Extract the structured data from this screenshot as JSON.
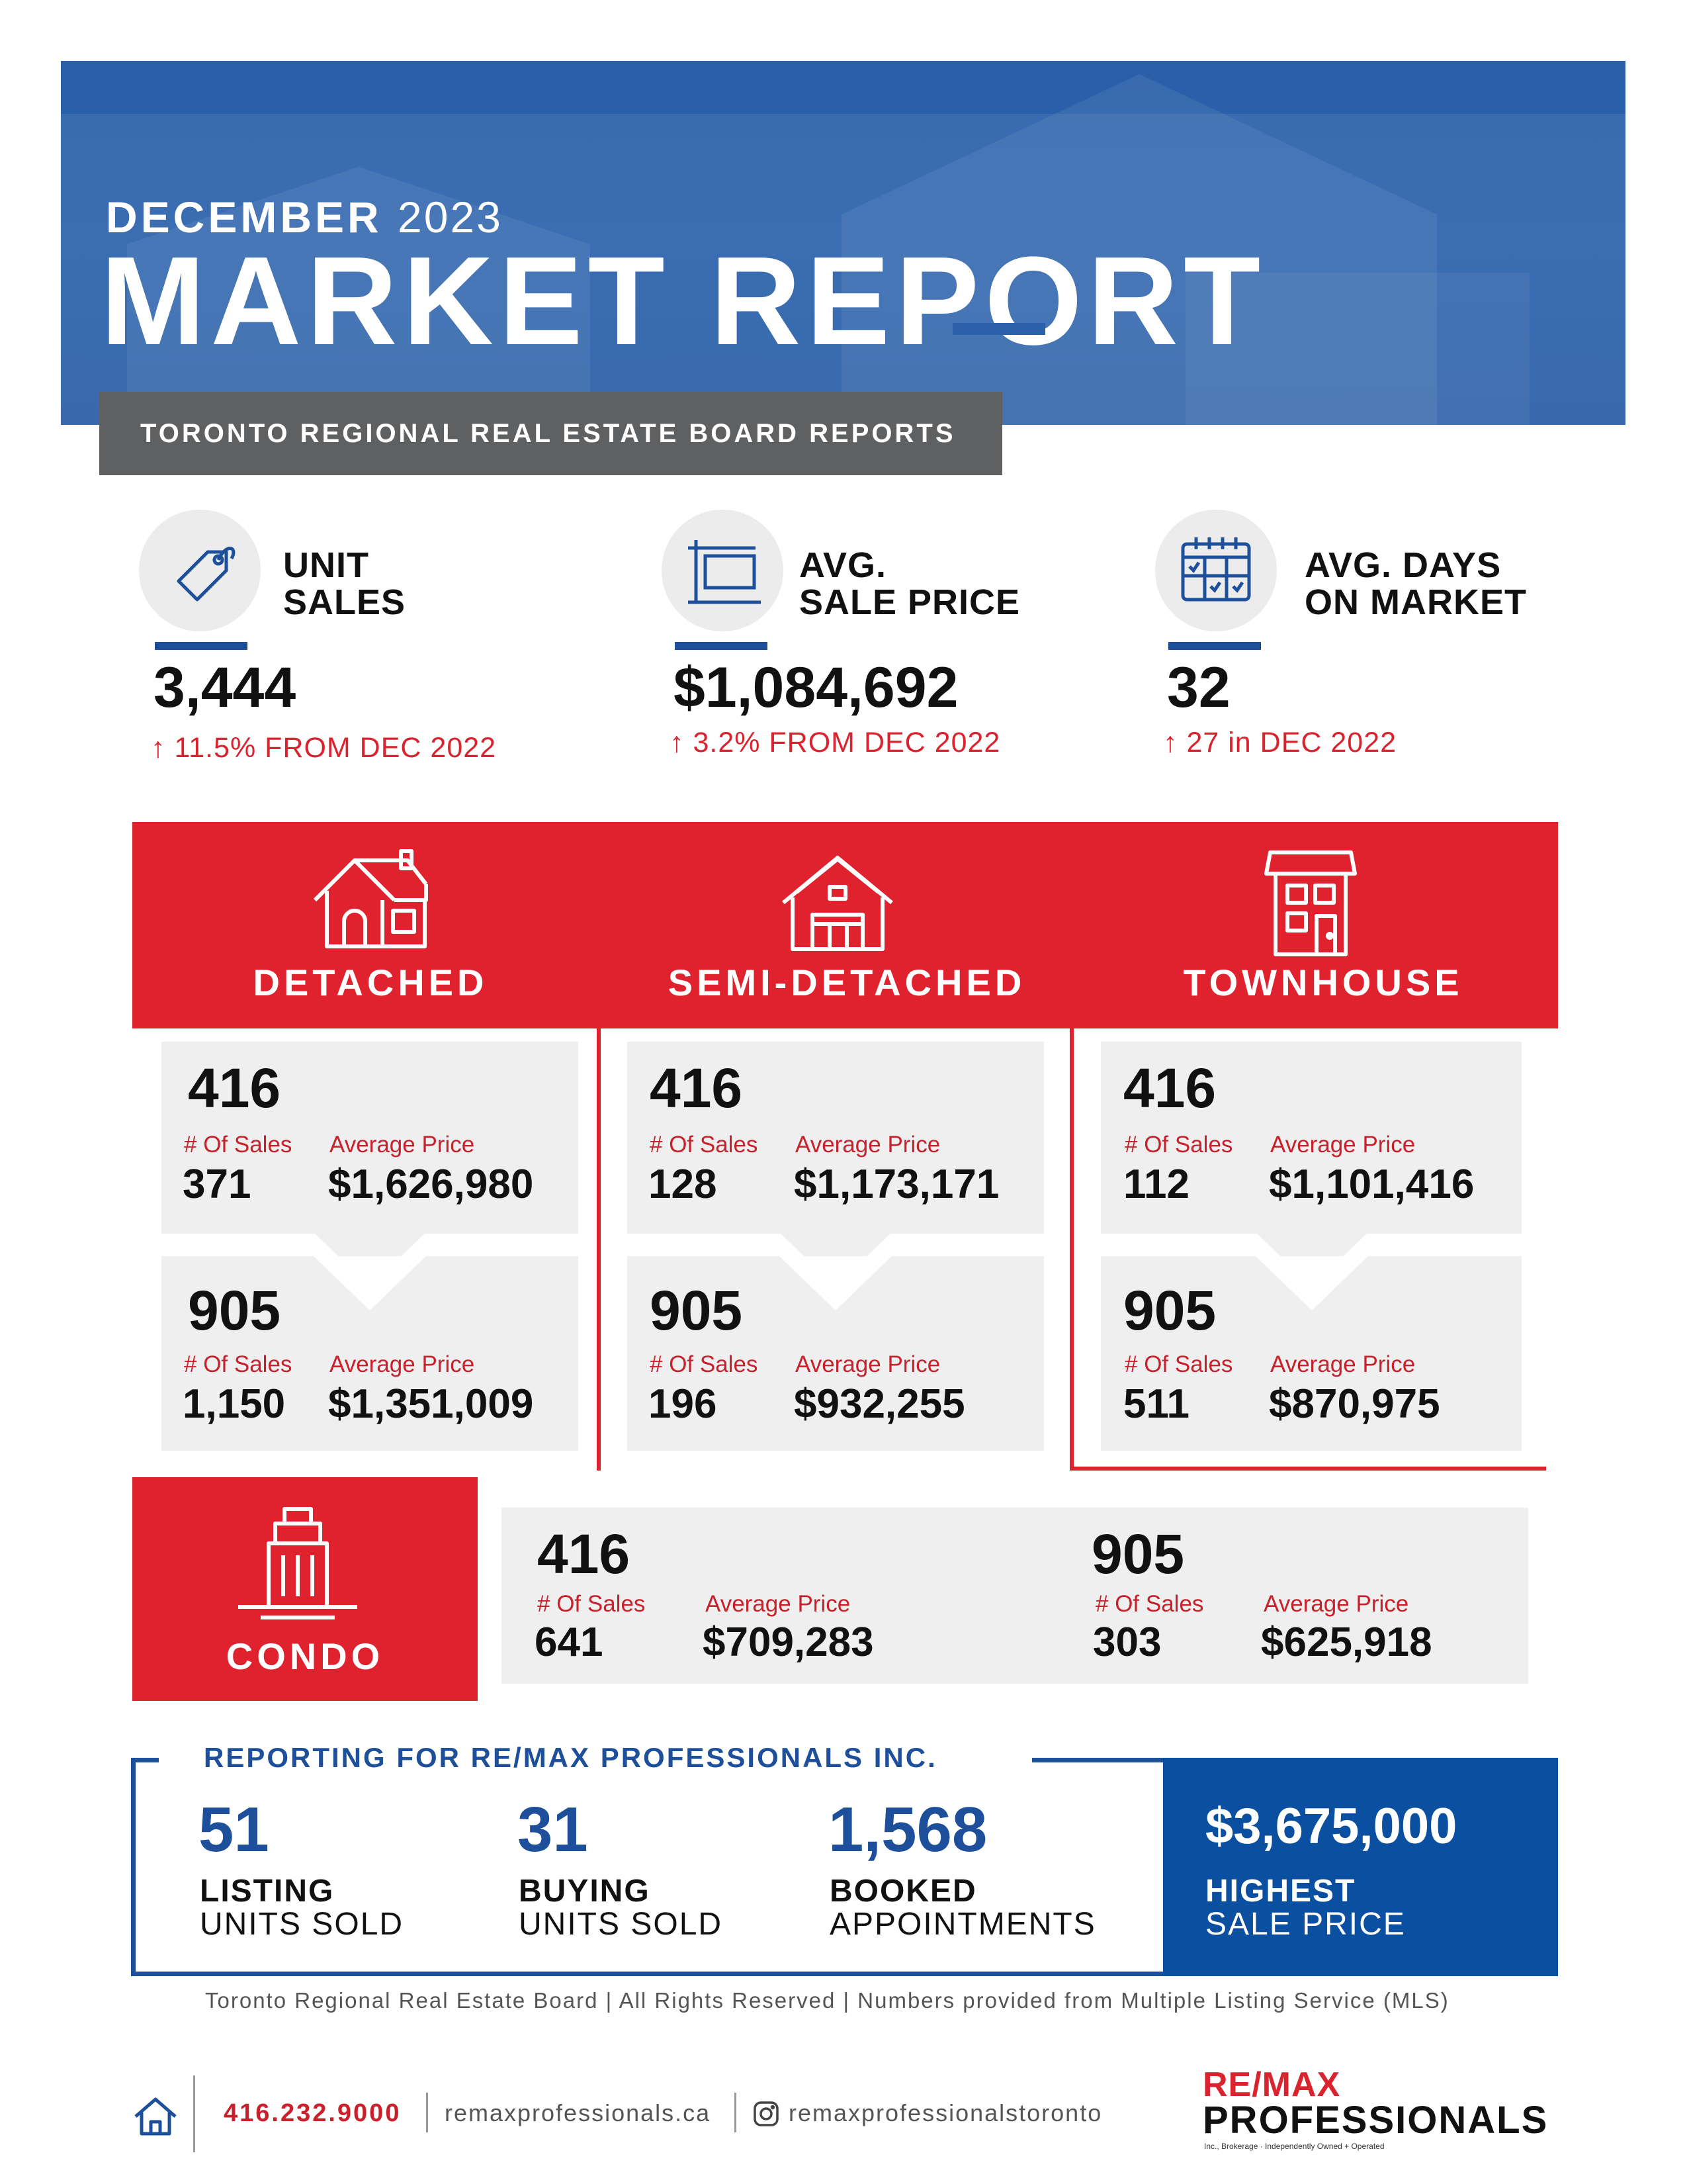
{
  "header": {
    "month": "DECEMBER",
    "year": "2023",
    "title": "MARKET REPORT",
    "subtitle": "TORONTO REGIONAL REAL ESTATE BOARD REPORTS"
  },
  "stats": [
    {
      "icon": "price-tag-icon",
      "label_line1": "UNIT",
      "label_line2": "SALES",
      "value": "3,444",
      "change": "11.5% FROM DEC 2022"
    },
    {
      "icon": "for-sale-sign-icon",
      "label_line1": "AVG.",
      "label_line2": "SALE PRICE",
      "value": "$1,084,692",
      "change": "3.2% FROM DEC 2022"
    },
    {
      "icon": "calendar-icon",
      "label_line1": "AVG. DAYS",
      "label_line2": "ON MARKET",
      "value": "32",
      "change": "27 in DEC 2022"
    }
  ],
  "labels": {
    "sales": "# Of Sales",
    "avg_price": "Average Price"
  },
  "types": [
    {
      "name": "DETACHED",
      "icon": "detached-house-icon",
      "area416": {
        "code": "416",
        "sales": "371",
        "price": "$1,626,980"
      },
      "area905": {
        "code": "905",
        "sales": "1,150",
        "price": "$1,351,009"
      }
    },
    {
      "name": "SEMI-DETACHED",
      "icon": "semi-detached-house-icon",
      "area416": {
        "code": "416",
        "sales": "128",
        "price": "$1,173,171"
      },
      "area905": {
        "code": "905",
        "sales": "196",
        "price": "$932,255"
      }
    },
    {
      "name": "TOWNHOUSE",
      "icon": "townhouse-icon",
      "area416": {
        "code": "416",
        "sales": "112",
        "price": "$1,101,416"
      },
      "area905": {
        "code": "905",
        "sales": "511",
        "price": "$870,975"
      }
    }
  ],
  "condo": {
    "name": "CONDO",
    "icon": "condo-building-icon",
    "area416": {
      "code": "416",
      "sales": "641",
      "price": "$709,283"
    },
    "area905": {
      "code": "905",
      "sales": "303",
      "price": "$625,918"
    }
  },
  "brokerage": {
    "title": "REPORTING FOR RE/MAX PROFESSIONALS INC.",
    "items": [
      {
        "value": "51",
        "line1": "LISTING",
        "line2": "UNITS SOLD"
      },
      {
        "value": "31",
        "line1": "BUYING",
        "line2": "UNITS SOLD"
      },
      {
        "value": "1,568",
        "line1": "BOOKED",
        "line2": "APPOINTMENTS"
      }
    ],
    "highest": {
      "value": "$3,675,000",
      "line1": "HIGHEST",
      "line2": "SALE PRICE"
    }
  },
  "footnote": "Toronto Regional Real Estate Board | All Rights Reserved | Numbers provided from Multiple Listing Service (MLS)",
  "footer": {
    "phone": "416.232.9000",
    "website": "remaxprofessionals.ca",
    "instagram": "remaxprofessionalstoronto",
    "brand_top": "RE/MAX",
    "brand_name": "PROFESSIONALS",
    "brand_tagline": "Inc., Brokerage · Independently Owned + Operated"
  },
  "colors": {
    "blue": "#1d4f9a",
    "red": "#e0222f",
    "grey_card": "#efefef",
    "grey_banner": "#5f6062"
  }
}
